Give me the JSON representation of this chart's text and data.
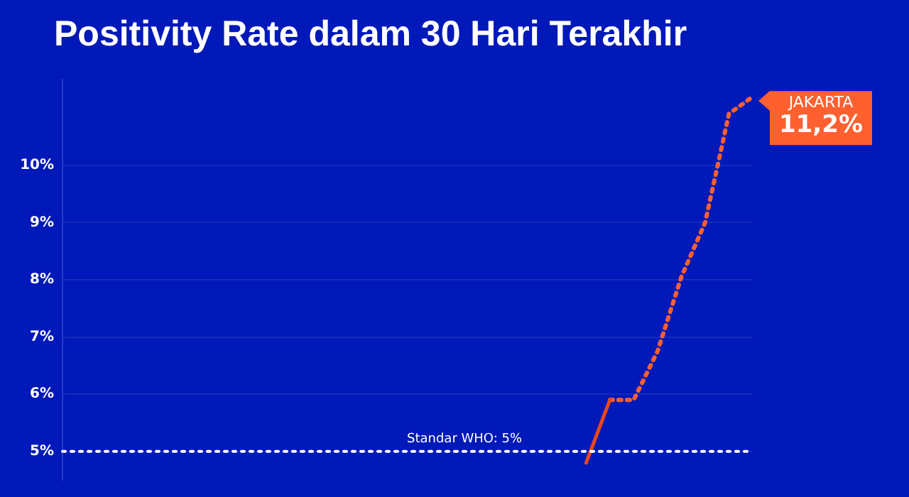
{
  "chart_data": {
    "type": "line",
    "title": "Positivity Rate dalam 30 Hari Terakhir",
    "categories": [
      null,
      null,
      null,
      null,
      null,
      null,
      null,
      null,
      null,
      null,
      null,
      null,
      null,
      null,
      null,
      null,
      null,
      null,
      null,
      null,
      null,
      null,
      null,
      null,
      null,
      null,
      null,
      null,
      null,
      null
    ],
    "series": [
      {
        "color": "#e8481a",
        "line_style": "solid",
        "values": [
          null,
          null,
          null,
          null,
          null,
          null,
          null,
          null,
          null,
          null,
          null,
          null,
          null,
          null,
          null,
          null,
          null,
          null,
          null,
          null,
          null,
          null,
          4.8,
          5.9,
          null,
          null,
          null,
          null,
          null,
          null
        ]
      },
      {
        "color": "#ff6030",
        "line_style": "dotted",
        "values": [
          null,
          null,
          null,
          null,
          null,
          null,
          null,
          null,
          null,
          null,
          null,
          null,
          null,
          null,
          null,
          null,
          null,
          null,
          null,
          null,
          null,
          null,
          null,
          5.9,
          5.9,
          6.75,
          8.05,
          9.0,
          10.9,
          11.2
        ],
        "value_labels": [
          null,
          null,
          null,
          null,
          null,
          null,
          null,
          null,
          null,
          null,
          null,
          null,
          null,
          null,
          null,
          null,
          null,
          null,
          null,
          null,
          null,
          null,
          null,
          null,
          null,
          null,
          null,
          null,
          null,
          "11,2%"
        ]
      }
    ],
    "ylim": [
      4.5,
      11.5
    ],
    "yticks": [
      {
        "value": 5,
        "label": "5%"
      },
      {
        "value": 6,
        "label": "6%"
      },
      {
        "value": 7,
        "label": "7%"
      },
      {
        "value": 8,
        "label": "8%"
      },
      {
        "value": 9,
        "label": "9%"
      },
      {
        "value": 10,
        "label": "10%"
      }
    ],
    "ref_lines": [
      {
        "axis": "y",
        "value": 5,
        "label": "Standar WHO: 5%",
        "color": "#ffffff",
        "line_style": "dotted"
      }
    ],
    "annotations": [
      "JAKARTA"
    ],
    "grid": "y",
    "legend": false,
    "tick_labels": "y",
    "marker": "none"
  }
}
